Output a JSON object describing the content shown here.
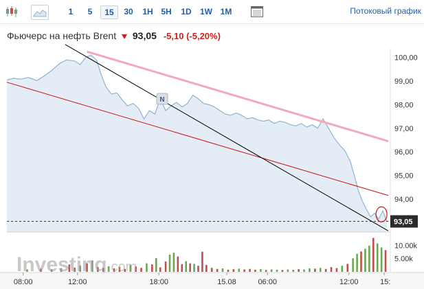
{
  "toolbar": {
    "timeframes": [
      "1",
      "5",
      "15",
      "30",
      "1H",
      "5H",
      "1D",
      "1W",
      "1M"
    ],
    "active_timeframe": "15",
    "stream_label": "Потоковый график"
  },
  "header": {
    "instrument": "Фьючерс на нефть Brent",
    "price": "93,05",
    "change": "-5,10",
    "change_pct": "(-5,20%)",
    "change_color": "#d01f1f"
  },
  "watermark": {
    "text": "Investing",
    "suffix": ".com"
  },
  "news_marker": "N",
  "last_price_label": "93,05",
  "chart_data": {
    "type": "area",
    "title": "",
    "xlabel": "",
    "ylabel": "",
    "ylim": [
      92.6,
      100.4
    ],
    "y_ticks": [
      "100,00",
      "99,00",
      "98,00",
      "97,00",
      "96,00",
      "95,00",
      "94,00"
    ],
    "y_tick_values": [
      100,
      99,
      98,
      97,
      96,
      95,
      94
    ],
    "x_ticks": [
      "08:00",
      "12:00",
      "18:00",
      "15.08",
      "06:00",
      "12:00",
      "15:"
    ],
    "x_tick_positions": [
      1.2,
      5.2,
      11.2,
      16.2,
      19.2,
      25.2,
      27.8
    ],
    "x_range": [
      0,
      28.1
    ],
    "volume_ticks": [
      "10.00k",
      "5.00k"
    ],
    "volume_tick_values": [
      10000,
      5000
    ],
    "volume_ylim": [
      0,
      14500
    ],
    "last_price": 93.05,
    "grid": false,
    "line_color": "#8fb3cf",
    "fill_color": "#e4edf6",
    "price_series": [
      [
        0.0,
        99.05
      ],
      [
        0.5,
        99.12
      ],
      [
        1.0,
        99.08
      ],
      [
        1.6,
        99.15
      ],
      [
        2.2,
        99.02
      ],
      [
        2.7,
        99.2
      ],
      [
        3.3,
        99.45
      ],
      [
        3.9,
        99.75
      ],
      [
        4.4,
        99.9
      ],
      [
        5.0,
        99.85
      ],
      [
        5.4,
        99.7
      ],
      [
        5.8,
        100.0
      ],
      [
        6.2,
        100.1
      ],
      [
        6.6,
        99.9
      ],
      [
        6.9,
        99.35
      ],
      [
        7.3,
        98.75
      ],
      [
        7.7,
        98.45
      ],
      [
        8.1,
        98.5
      ],
      [
        8.5,
        98.2
      ],
      [
        8.9,
        97.95
      ],
      [
        9.3,
        98.05
      ],
      [
        9.7,
        97.85
      ],
      [
        10.1,
        97.4
      ],
      [
        10.5,
        97.75
      ],
      [
        10.9,
        97.6
      ],
      [
        11.3,
        98.25
      ],
      [
        11.7,
        97.75
      ],
      [
        12.1,
        97.95
      ],
      [
        12.5,
        98.1
      ],
      [
        12.9,
        97.9
      ],
      [
        13.3,
        98.05
      ],
      [
        13.7,
        98.4
      ],
      [
        14.1,
        98.25
      ],
      [
        14.5,
        98.05
      ],
      [
        14.9,
        98.0
      ],
      [
        15.3,
        97.9
      ],
      [
        15.7,
        97.75
      ],
      [
        16.1,
        97.6
      ],
      [
        16.5,
        97.55
      ],
      [
        16.9,
        97.65
      ],
      [
        17.3,
        97.55
      ],
      [
        17.7,
        97.4
      ],
      [
        18.1,
        97.45
      ],
      [
        18.5,
        97.35
      ],
      [
        18.9,
        97.3
      ],
      [
        19.3,
        97.35
      ],
      [
        19.7,
        97.2
      ],
      [
        20.1,
        97.3
      ],
      [
        20.5,
        97.25
      ],
      [
        20.9,
        97.15
      ],
      [
        21.3,
        97.1
      ],
      [
        21.7,
        97.2
      ],
      [
        22.1,
        97.05
      ],
      [
        22.5,
        97.15
      ],
      [
        22.9,
        97.0
      ],
      [
        23.3,
        97.4
      ],
      [
        23.7,
        97.0
      ],
      [
        24.1,
        96.6
      ],
      [
        24.5,
        96.3
      ],
      [
        24.9,
        96.05
      ],
      [
        25.3,
        95.6
      ],
      [
        25.6,
        95.0
      ],
      [
        25.9,
        94.35
      ],
      [
        26.2,
        93.9
      ],
      [
        26.5,
        93.55
      ],
      [
        26.8,
        93.25
      ],
      [
        27.1,
        93.4
      ],
      [
        27.4,
        93.15
      ],
      [
        27.7,
        93.5
      ],
      [
        28.0,
        93.05
      ]
    ],
    "volume_series": [
      [
        1.5,
        900
      ],
      [
        2.5,
        1200
      ],
      [
        3.3,
        1000
      ],
      [
        4.0,
        1400
      ],
      [
        4.6,
        2800
      ],
      [
        5.0,
        1600
      ],
      [
        5.4,
        2400
      ],
      [
        5.9,
        3200
      ],
      [
        6.3,
        4300
      ],
      [
        6.7,
        1800
      ],
      [
        7.1,
        1500
      ],
      [
        7.5,
        2100
      ],
      [
        7.9,
        1300
      ],
      [
        8.3,
        1900
      ],
      [
        8.7,
        1100
      ],
      [
        9.1,
        2600
      ],
      [
        9.5,
        2000
      ],
      [
        9.9,
        1500
      ],
      [
        10.3,
        3200
      ],
      [
        10.7,
        2800
      ],
      [
        11.0,
        5200
      ],
      [
        11.3,
        1700
      ],
      [
        11.7,
        3900
      ],
      [
        12.0,
        6500
      ],
      [
        12.3,
        7200
      ],
      [
        12.6,
        5800
      ],
      [
        12.9,
        2900
      ],
      [
        13.2,
        4000
      ],
      [
        13.5,
        3200
      ],
      [
        13.8,
        3000
      ],
      [
        14.1,
        2300
      ],
      [
        14.4,
        7600
      ],
      [
        14.7,
        2600
      ],
      [
        15.1,
        1500
      ],
      [
        15.5,
        1100
      ],
      [
        15.9,
        1300
      ],
      [
        16.3,
        800
      ],
      [
        16.7,
        1000
      ],
      [
        17.1,
        1200
      ],
      [
        17.5,
        900
      ],
      [
        17.9,
        1100
      ],
      [
        18.3,
        800
      ],
      [
        18.7,
        1000
      ],
      [
        19.1,
        700
      ],
      [
        19.5,
        900
      ],
      [
        19.9,
        800
      ],
      [
        20.3,
        700
      ],
      [
        20.7,
        900
      ],
      [
        21.1,
        800
      ],
      [
        21.5,
        1000
      ],
      [
        21.9,
        900
      ],
      [
        22.3,
        1300
      ],
      [
        22.7,
        1200
      ],
      [
        23.1,
        1500
      ],
      [
        23.5,
        1100
      ],
      [
        23.9,
        1800
      ],
      [
        24.3,
        1400
      ],
      [
        24.7,
        2300
      ],
      [
        25.1,
        3000
      ],
      [
        25.5,
        5100
      ],
      [
        25.8,
        6800
      ],
      [
        26.1,
        7700
      ],
      [
        26.4,
        8700
      ],
      [
        26.7,
        9900
      ],
      [
        27.0,
        12800
      ],
      [
        27.3,
        10700
      ],
      [
        27.6,
        9200
      ],
      [
        27.9,
        8200
      ]
    ],
    "volume_up_color": "#6aa84f",
    "volume_down_color": "#c0504d",
    "trendlines": [
      {
        "color": "#f2a9bd",
        "points": [
          [
            5.9,
            100.25
          ],
          [
            28.1,
            96.45
          ]
        ]
      },
      {
        "color": "#cc1010",
        "points": [
          [
            0.0,
            98.95
          ],
          [
            28.1,
            94.15
          ]
        ]
      },
      {
        "color": "#000000",
        "points": [
          [
            4.3,
            100.55
          ],
          [
            28.1,
            92.65
          ]
        ]
      }
    ],
    "circle_marker": [
      27.6,
      93.35
    ]
  }
}
